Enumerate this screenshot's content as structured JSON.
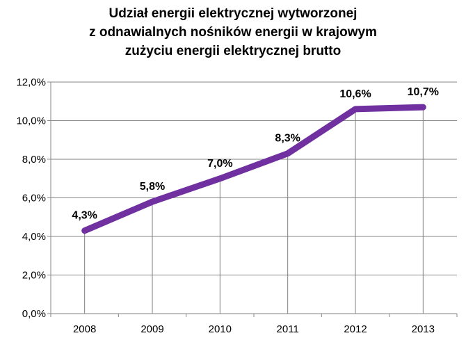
{
  "chart_data": {
    "type": "line",
    "title_lines": [
      "Udział energii elektrycznej wytworzonej",
      "z odnawialnych nośników energii w krajowym",
      "zużyciu energii elektrycznej brutto"
    ],
    "categories": [
      "2008",
      "2009",
      "2010",
      "2011",
      "2012",
      "2013"
    ],
    "series": [
      {
        "values": [
          4.3,
          5.8,
          7.0,
          8.3,
          10.6,
          10.7
        ],
        "data_labels": [
          "4,3%",
          "5,8%",
          "7,0%",
          "8,3%",
          "10,6%",
          "10,7%"
        ],
        "color": "#7030a0"
      }
    ],
    "ylim": [
      0,
      12
    ],
    "y_ticks": [
      0,
      2,
      4,
      6,
      8,
      10,
      12
    ],
    "y_tick_labels": [
      "0,0%",
      "2,0%",
      "4,0%",
      "6,0%",
      "8,0%",
      "10,0%",
      "12,0%"
    ],
    "xlabel": "",
    "ylabel": "",
    "grid": "horizontal",
    "legend": "none"
  }
}
